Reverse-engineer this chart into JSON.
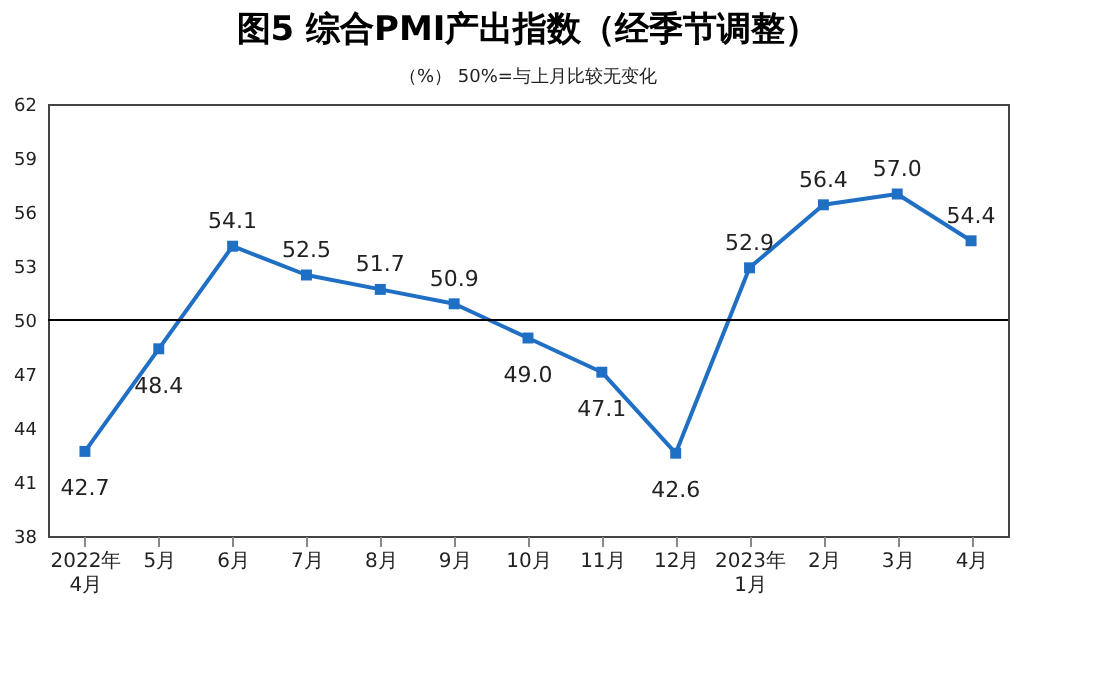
{
  "chart_data": {
    "type": "line",
    "title": "图5 综合PMI产出指数（经季节调整）",
    "annotations": [
      "（%）  50%=与上月比较无变化"
    ],
    "categories": [
      "2022年\n4月",
      "5月",
      "6月",
      "7月",
      "8月",
      "9月",
      "10月",
      "11月",
      "12月",
      "2023年\n1月",
      "2月",
      "3月",
      "4月"
    ],
    "series": [
      {
        "color": "#1f6fc5",
        "values": [
          42.7,
          48.4,
          54.1,
          52.5,
          51.7,
          50.9,
          49.0,
          47.1,
          42.6,
          52.9,
          56.4,
          57.0,
          54.4
        ]
      }
    ],
    "ylim": [
      38,
      62
    ],
    "yticks": [
      38,
      41,
      44,
      47,
      50,
      53,
      56,
      59,
      62
    ],
    "ref_lines": [
      {
        "axis": "y",
        "value": 50,
        "color": "#000000"
      }
    ],
    "value_labels": [
      "42.7",
      "48.4",
      "54.1",
      "52.5",
      "51.7",
      "50.9",
      "49.0",
      "47.1",
      "42.6",
      "52.9",
      "56.4",
      "57.0",
      "54.4"
    ],
    "marker": "square",
    "line_style": "solid",
    "grid": false
  }
}
